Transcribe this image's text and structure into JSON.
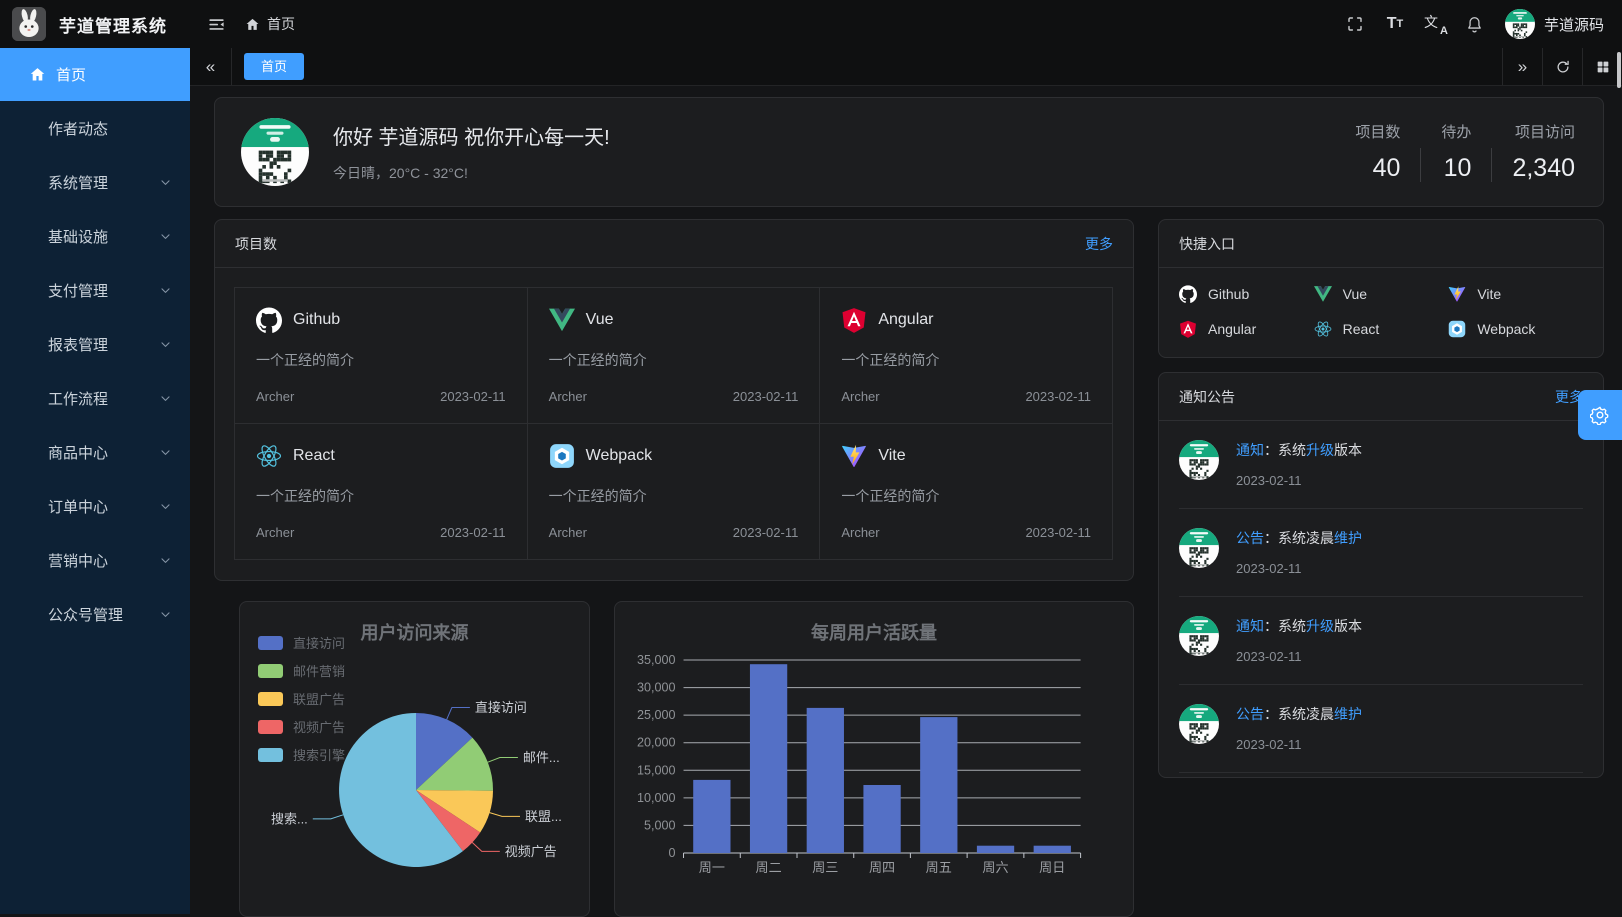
{
  "theme": {
    "accent": "#409eff",
    "sidebar_bg": "#0d2135",
    "card_bg": "#1c1d1f"
  },
  "app": {
    "title": "芋道管理系统"
  },
  "topbar": {
    "breadcrumb": {
      "home": "首页"
    },
    "user_name": "芋道源码"
  },
  "sidebar": {
    "items": [
      {
        "label": "首页",
        "icon": "home",
        "active": true,
        "children": false
      },
      {
        "label": "作者动态",
        "active": false,
        "children": false
      },
      {
        "label": "系统管理",
        "active": false,
        "children": true
      },
      {
        "label": "基础设施",
        "active": false,
        "children": true
      },
      {
        "label": "支付管理",
        "active": false,
        "children": true
      },
      {
        "label": "报表管理",
        "active": false,
        "children": true
      },
      {
        "label": "工作流程",
        "active": false,
        "children": true
      },
      {
        "label": "商品中心",
        "active": false,
        "children": true
      },
      {
        "label": "订单中心",
        "active": false,
        "children": true
      },
      {
        "label": "营销中心",
        "active": false,
        "children": true
      },
      {
        "label": "公众号管理",
        "active": false,
        "children": true
      }
    ]
  },
  "tabbar": {
    "active_tab": "首页"
  },
  "greeting": {
    "title": "你好 芋道源码 祝你开心每一天!",
    "subtitle": "今日晴，20°C - 32°C!",
    "stats": [
      {
        "label": "项目数",
        "value": "40"
      },
      {
        "label": "待办",
        "value": "10"
      },
      {
        "label": "项目访问",
        "value": "2,340"
      }
    ]
  },
  "projects": {
    "title": "项目数",
    "more_label": "更多",
    "items": [
      {
        "name": "Github",
        "icon": "github",
        "desc": "一个正经的简介",
        "author": "Archer",
        "date": "2023-02-11"
      },
      {
        "name": "Vue",
        "icon": "vue",
        "desc": "一个正经的简介",
        "author": "Archer",
        "date": "2023-02-11"
      },
      {
        "name": "Angular",
        "icon": "angular",
        "desc": "一个正经的简介",
        "author": "Archer",
        "date": "2023-02-11"
      },
      {
        "name": "React",
        "icon": "react",
        "desc": "一个正经的简介",
        "author": "Archer",
        "date": "2023-02-11"
      },
      {
        "name": "Webpack",
        "icon": "webpack",
        "desc": "一个正经的简介",
        "author": "Archer",
        "date": "2023-02-11"
      },
      {
        "name": "Vite",
        "icon": "vite",
        "desc": "一个正经的简介",
        "author": "Archer",
        "date": "2023-02-11"
      }
    ]
  },
  "shortcuts": {
    "title": "快捷入口",
    "items": [
      {
        "name": "Github",
        "icon": "github"
      },
      {
        "name": "Vue",
        "icon": "vue"
      },
      {
        "name": "Vite",
        "icon": "vite"
      },
      {
        "name": "Angular",
        "icon": "angular"
      },
      {
        "name": "React",
        "icon": "react"
      },
      {
        "name": "Webpack",
        "icon": "webpack"
      }
    ]
  },
  "notices": {
    "title": "通知公告",
    "more_label": "更多",
    "items": [
      {
        "segments": [
          {
            "text": "通知",
            "highlight": true
          },
          {
            "text": "：系统",
            "highlight": false
          },
          {
            "text": "升级",
            "highlight": true
          },
          {
            "text": "版本",
            "highlight": false
          }
        ],
        "date": "2023-02-11"
      },
      {
        "segments": [
          {
            "text": "公告",
            "highlight": true
          },
          {
            "text": "：系统凌晨",
            "highlight": false
          },
          {
            "text": "维护",
            "highlight": true
          }
        ],
        "date": "2023-02-11"
      },
      {
        "segments": [
          {
            "text": "通知",
            "highlight": true
          },
          {
            "text": "：系统",
            "highlight": false
          },
          {
            "text": "升级",
            "highlight": true
          },
          {
            "text": "版本",
            "highlight": false
          }
        ],
        "date": "2023-02-11"
      },
      {
        "segments": [
          {
            "text": "公告",
            "highlight": true
          },
          {
            "text": "：系统凌晨",
            "highlight": false
          },
          {
            "text": "维护",
            "highlight": true
          }
        ],
        "date": "2023-02-11"
      }
    ]
  },
  "chart_data": [
    {
      "type": "pie",
      "title": "用户访问来源",
      "legend_position": "left",
      "legend": [
        "直接访问",
        "邮件营销",
        "联盟广告",
        "视频广告",
        "搜索引擎"
      ],
      "series": [
        {
          "name": "直接访问",
          "value": 335,
          "color": "#5470c6",
          "label": "直接访问"
        },
        {
          "name": "邮件营销",
          "value": 310,
          "color": "#91cc75",
          "label": "邮件..."
        },
        {
          "name": "联盟广告",
          "value": 234,
          "color": "#fac858",
          "label": "联盟..."
        },
        {
          "name": "视频广告",
          "value": 135,
          "color": "#ee6666",
          "label": "视频广告"
        },
        {
          "name": "搜索引擎",
          "value": 1548,
          "color": "#73c0de",
          "label": "搜索..."
        }
      ]
    },
    {
      "type": "bar",
      "title": "每周用户活跃量",
      "categories": [
        "周一",
        "周二",
        "周三",
        "周四",
        "周五",
        "周六",
        "周日"
      ],
      "values": [
        13253,
        34235,
        26321,
        12340,
        24643,
        1322,
        1324
      ],
      "bar_color": "#5470c6",
      "ylim": [
        0,
        35000
      ],
      "ytick_step": 5000,
      "grid": true,
      "legend_position": "none"
    }
  ]
}
